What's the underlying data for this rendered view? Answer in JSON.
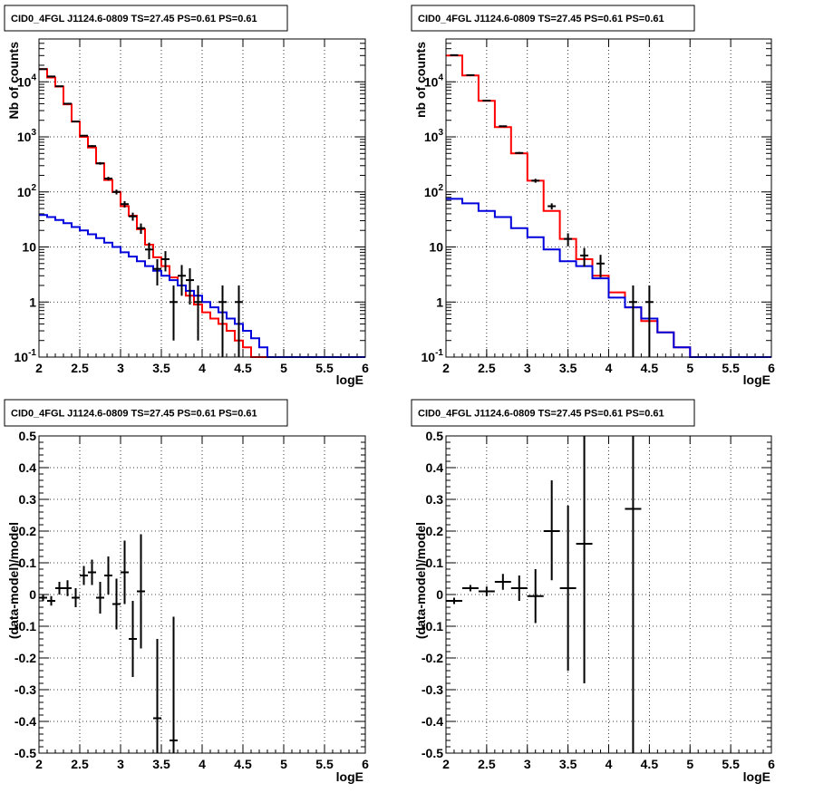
{
  "chart_data": [
    {
      "id": "p1",
      "type": "line",
      "title": "CID0_4FGL J1124.6-0809 TS=27.45 PS=0.61 PS=0.61",
      "xlabel": "logE",
      "ylabel": "Nb of counts",
      "xlim": [
        2,
        6
      ],
      "ylim": [
        0.1,
        60000
      ],
      "yscale": "log",
      "grid": true,
      "xticks": [
        "2",
        "2.5",
        "3",
        "3.5",
        "4",
        "4.5",
        "5",
        "5.5",
        "6"
      ],
      "yticks": [
        {
          "value": 0.1,
          "label": "10^-1"
        },
        {
          "value": 1,
          "label": "1"
        },
        {
          "value": 10,
          "label": "10"
        },
        {
          "value": 100,
          "label": "10^2"
        },
        {
          "value": 1000,
          "label": "10^3"
        },
        {
          "value": 10000,
          "label": "10^4"
        }
      ],
      "edges": [
        2.0,
        2.1,
        2.2,
        2.3,
        2.4,
        2.5,
        2.6,
        2.7,
        2.8,
        2.9,
        3.0,
        3.1,
        3.2,
        3.3,
        3.4,
        3.5,
        3.6,
        3.7,
        3.8,
        3.9,
        4.0,
        4.1,
        4.2,
        4.3,
        4.4,
        4.5,
        4.6,
        4.7,
        4.8,
        4.9,
        5.0,
        5.1,
        5.2,
        5.3,
        5.4,
        5.5,
        5.6,
        5.7,
        5.8,
        5.9,
        6.0
      ],
      "series": [
        {
          "color": "#ff0000",
          "values": [
            17000,
            12000,
            8200,
            3900,
            1900,
            1000,
            640,
            330,
            165,
            100,
            55,
            37,
            21,
            11,
            6.5,
            4.5,
            2.8,
            2.0,
            1.3,
            0.9,
            0.65,
            0.5,
            0.4,
            0.3,
            0.2,
            0.15,
            0.1,
            0.1,
            0.1,
            0.1,
            0.1,
            0.1,
            0.1,
            0.1,
            0.1,
            0.1,
            0.1,
            0.1,
            0.1,
            0.1
          ]
        },
        {
          "color": "#0000dd",
          "values": [
            38,
            35,
            31,
            27,
            23,
            20,
            17,
            14.5,
            12,
            10,
            8,
            6.7,
            5.5,
            4.5,
            3.7,
            3.0,
            2.5,
            2.0,
            1.6,
            1.3,
            1.0,
            0.8,
            0.65,
            0.5,
            0.4,
            0.3,
            0.22,
            0.15,
            0.1,
            0.1,
            0.1,
            0.1,
            0.1,
            0.1,
            0.1,
            0.1,
            0.1,
            0.1,
            0.1,
            0.1
          ]
        }
      ],
      "points": [
        {
          "x": 2.05,
          "y": 17000,
          "ylo": 16900,
          "yhi": 17100
        },
        {
          "x": 2.15,
          "y": 12500,
          "ylo": 12400,
          "yhi": 12600
        },
        {
          "x": 2.25,
          "y": 8300,
          "ylo": 8200,
          "yhi": 8400
        },
        {
          "x": 2.35,
          "y": 4000,
          "ylo": 3940,
          "yhi": 4060
        },
        {
          "x": 2.45,
          "y": 1900,
          "ylo": 1860,
          "yhi": 1940
        },
        {
          "x": 2.55,
          "y": 1050,
          "ylo": 1020,
          "yhi": 1080
        },
        {
          "x": 2.65,
          "y": 680,
          "ylo": 655,
          "yhi": 705
        },
        {
          "x": 2.75,
          "y": 330,
          "ylo": 312,
          "yhi": 348
        },
        {
          "x": 2.85,
          "y": 175,
          "ylo": 162,
          "yhi": 188
        },
        {
          "x": 2.95,
          "y": 100,
          "ylo": 90,
          "yhi": 110
        },
        {
          "x": 3.05,
          "y": 60,
          "ylo": 52,
          "yhi": 68
        },
        {
          "x": 3.15,
          "y": 36,
          "ylo": 30,
          "yhi": 42
        },
        {
          "x": 3.25,
          "y": 22,
          "ylo": 17.3,
          "yhi": 26.7
        },
        {
          "x": 3.35,
          "y": 9,
          "ylo": 6,
          "yhi": 12
        },
        {
          "x": 3.45,
          "y": 4,
          "ylo": 2,
          "yhi": 6
        },
        {
          "x": 3.55,
          "y": 6,
          "ylo": 3.6,
          "yhi": 8.4
        },
        {
          "x": 3.65,
          "y": 1.0,
          "ylo": 0.2,
          "yhi": 2.0
        },
        {
          "x": 3.75,
          "y": 3.0,
          "ylo": 1.3,
          "yhi": 4.7
        },
        {
          "x": 3.85,
          "y": 2.5,
          "ylo": 0.9,
          "yhi": 4.1
        },
        {
          "x": 3.95,
          "y": 1.0,
          "ylo": 0.2,
          "yhi": 2.0
        },
        {
          "x": 4.25,
          "y": 1.0,
          "ylo": 0.1,
          "yhi": 2.0
        },
        {
          "x": 4.45,
          "y": 1.0,
          "ylo": 0.1,
          "yhi": 2.0
        }
      ]
    },
    {
      "id": "p2",
      "type": "line",
      "title": "CID0_4FGL J1124.6-0809 TS=27.45 PS=0.61 PS=0.61",
      "xlabel": "logE",
      "ylabel": "nb of counts",
      "xlim": [
        2,
        6
      ],
      "ylim": [
        0.1,
        60000
      ],
      "yscale": "log",
      "grid": true,
      "xticks": [
        "2",
        "2.5",
        "3",
        "3.5",
        "4",
        "4.5",
        "5",
        "5.5",
        "6"
      ],
      "yticks": [
        {
          "value": 0.1,
          "label": "10^-1"
        },
        {
          "value": 1,
          "label": "1"
        },
        {
          "value": 10,
          "label": "10"
        },
        {
          "value": 100,
          "label": "10^2"
        },
        {
          "value": 1000,
          "label": "10^3"
        },
        {
          "value": 10000,
          "label": "10^4"
        }
      ],
      "edges": [
        2.0,
        2.2,
        2.4,
        2.6,
        2.8,
        3.0,
        3.2,
        3.4,
        3.6,
        3.8,
        4.0,
        4.2,
        4.4,
        4.6,
        4.8,
        5.0,
        5.2,
        5.4,
        5.6,
        5.8,
        6.0
      ],
      "series": [
        {
          "color": "#ff0000",
          "values": [
            30000,
            13000,
            4500,
            1500,
            500,
            160,
            45,
            14,
            6,
            3,
            1.5,
            0.8,
            0.45,
            0.28,
            0.15,
            0.1,
            0.1,
            0.1,
            0.1,
            0.1
          ]
        },
        {
          "color": "#0000dd",
          "values": [
            75,
            62,
            45,
            35,
            22,
            15,
            9,
            5.5,
            4.5,
            2.7,
            1.2,
            0.8,
            0.5,
            0.28,
            0.15,
            0.1,
            0.1,
            0.1,
            0.1,
            0.1
          ]
        }
      ],
      "points": [
        {
          "x": 2.1,
          "y": 30500,
          "ylo": 30300,
          "yhi": 30700
        },
        {
          "x": 2.3,
          "y": 13200,
          "ylo": 13000,
          "yhi": 13400
        },
        {
          "x": 2.5,
          "y": 4550,
          "ylo": 4480,
          "yhi": 4620
        },
        {
          "x": 2.7,
          "y": 1560,
          "ylo": 1520,
          "yhi": 1600
        },
        {
          "x": 2.9,
          "y": 510,
          "ylo": 488,
          "yhi": 532
        },
        {
          "x": 3.1,
          "y": 160,
          "ylo": 147,
          "yhi": 173
        },
        {
          "x": 3.3,
          "y": 55,
          "ylo": 48,
          "yhi": 62
        },
        {
          "x": 3.5,
          "y": 14,
          "ylo": 10.3,
          "yhi": 17.7
        },
        {
          "x": 3.7,
          "y": 7,
          "ylo": 4.4,
          "yhi": 9.6
        },
        {
          "x": 3.9,
          "y": 5,
          "ylo": 2.8,
          "yhi": 7.2
        },
        {
          "x": 4.3,
          "y": 1.0,
          "ylo": 0.1,
          "yhi": 2.0
        },
        {
          "x": 4.5,
          "y": 1.0,
          "ylo": 0.1,
          "yhi": 2.0
        }
      ]
    },
    {
      "id": "p3",
      "type": "scatter",
      "title": "CID0_4FGL J1124.6-0809 TS=27.45 PS=0.61 PS=0.61",
      "xlabel": "logE",
      "ylabel": "(data-model)/model",
      "xlim": [
        2,
        6
      ],
      "ylim": [
        -0.5,
        0.5
      ],
      "yscale": "linear",
      "grid": true,
      "xticks": [
        "2",
        "2.5",
        "3",
        "3.5",
        "4",
        "4.5",
        "5",
        "5.5",
        "6"
      ],
      "yticks": [
        {
          "value": -0.5,
          "label": "-0.5"
        },
        {
          "value": -0.4,
          "label": "-0.4"
        },
        {
          "value": -0.3,
          "label": "-0.3"
        },
        {
          "value": -0.2,
          "label": "-0.2"
        },
        {
          "value": -0.1,
          "label": "-0.1"
        },
        {
          "value": 0,
          "label": "0"
        },
        {
          "value": 0.1,
          "label": "0.1"
        },
        {
          "value": 0.2,
          "label": "0.2"
        },
        {
          "value": 0.3,
          "label": "0.3"
        },
        {
          "value": 0.4,
          "label": "0.4"
        },
        {
          "value": 0.5,
          "label": "0.5"
        }
      ],
      "points": [
        {
          "x": 2.05,
          "y": -0.01,
          "ylo": -0.02,
          "yhi": 0.0,
          "xerr": 0.05
        },
        {
          "x": 2.15,
          "y": -0.02,
          "ylo": -0.035,
          "yhi": -0.005,
          "xerr": 0.05
        },
        {
          "x": 2.25,
          "y": 0.02,
          "ylo": 0.0,
          "yhi": 0.04,
          "xerr": 0.05
        },
        {
          "x": 2.35,
          "y": 0.02,
          "ylo": -0.005,
          "yhi": 0.045,
          "xerr": 0.05
        },
        {
          "x": 2.45,
          "y": -0.01,
          "ylo": -0.04,
          "yhi": 0.02,
          "xerr": 0.05
        },
        {
          "x": 2.55,
          "y": 0.06,
          "ylo": 0.03,
          "yhi": 0.09,
          "xerr": 0.05
        },
        {
          "x": 2.65,
          "y": 0.07,
          "ylo": 0.03,
          "yhi": 0.11,
          "xerr": 0.05
        },
        {
          "x": 2.75,
          "y": -0.01,
          "ylo": -0.06,
          "yhi": 0.04,
          "xerr": 0.05
        },
        {
          "x": 2.85,
          "y": 0.06,
          "ylo": 0.0,
          "yhi": 0.12,
          "xerr": 0.05
        },
        {
          "x": 2.95,
          "y": -0.03,
          "ylo": -0.11,
          "yhi": 0.05,
          "xerr": 0.05
        },
        {
          "x": 3.05,
          "y": 0.07,
          "ylo": -0.03,
          "yhi": 0.17,
          "xerr": 0.05
        },
        {
          "x": 3.15,
          "y": -0.14,
          "ylo": -0.26,
          "yhi": -0.02,
          "xerr": 0.05
        },
        {
          "x": 3.25,
          "y": 0.01,
          "ylo": -0.17,
          "yhi": 0.19,
          "xerr": 0.05
        },
        {
          "x": 3.45,
          "y": -0.39,
          "ylo": -0.5,
          "yhi": -0.14,
          "xerr": 0.05
        },
        {
          "x": 3.65,
          "y": -0.46,
          "ylo": -0.5,
          "yhi": -0.07,
          "xerr": 0.05
        }
      ]
    },
    {
      "id": "p4",
      "type": "scatter",
      "title": "CID0_4FGL J1124.6-0809 TS=27.45 PS=0.61 PS=0.61",
      "xlabel": "logE",
      "ylabel": "(data-model)/model",
      "xlim": [
        2,
        6
      ],
      "ylim": [
        -0.5,
        0.5
      ],
      "yscale": "linear",
      "grid": true,
      "xticks": [
        "2",
        "2.5",
        "3",
        "3.5",
        "4",
        "4.5",
        "5",
        "5.5",
        "6"
      ],
      "yticks": [
        {
          "value": -0.5,
          "label": "-0.5"
        },
        {
          "value": -0.4,
          "label": "-0.4"
        },
        {
          "value": -0.3,
          "label": "-0.3"
        },
        {
          "value": -0.2,
          "label": "-0.2"
        },
        {
          "value": -0.1,
          "label": "-0.1"
        },
        {
          "value": 0,
          "label": "0"
        },
        {
          "value": 0.1,
          "label": "0.1"
        },
        {
          "value": 0.2,
          "label": "0.2"
        },
        {
          "value": 0.3,
          "label": "0.3"
        },
        {
          "value": 0.4,
          "label": "0.4"
        },
        {
          "value": 0.5,
          "label": "0.5"
        }
      ],
      "points": [
        {
          "x": 2.1,
          "y": -0.02,
          "ylo": -0.03,
          "yhi": -0.01,
          "xerr": 0.1
        },
        {
          "x": 2.3,
          "y": 0.02,
          "ylo": 0.01,
          "yhi": 0.03,
          "xerr": 0.1
        },
        {
          "x": 2.5,
          "y": 0.01,
          "ylo": -0.005,
          "yhi": 0.025,
          "xerr": 0.1
        },
        {
          "x": 2.7,
          "y": 0.04,
          "ylo": 0.015,
          "yhi": 0.065,
          "xerr": 0.1
        },
        {
          "x": 2.9,
          "y": 0.02,
          "ylo": -0.02,
          "yhi": 0.06,
          "xerr": 0.1
        },
        {
          "x": 3.1,
          "y": -0.005,
          "ylo": -0.09,
          "yhi": 0.08,
          "xerr": 0.1
        },
        {
          "x": 3.3,
          "y": 0.2,
          "ylo": 0.045,
          "yhi": 0.36,
          "xerr": 0.1
        },
        {
          "x": 3.5,
          "y": 0.02,
          "ylo": -0.24,
          "yhi": 0.28,
          "xerr": 0.1
        },
        {
          "x": 3.7,
          "y": 0.16,
          "ylo": -0.28,
          "yhi": 0.5,
          "xerr": 0.1
        },
        {
          "x": 4.3,
          "y": 0.27,
          "ylo": -0.5,
          "yhi": 0.5,
          "xerr": 0.1
        }
      ]
    }
  ]
}
